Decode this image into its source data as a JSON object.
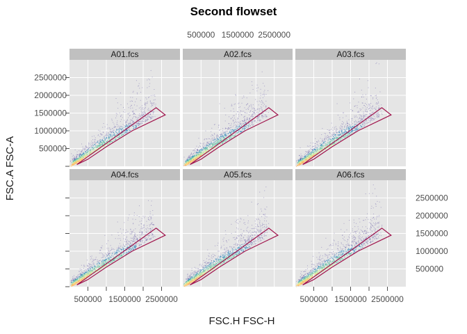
{
  "chart_data": {
    "type": "scatter",
    "title": "Second flowset",
    "xlabel": "FSC.H FSC-H",
    "ylabel": "FSC.A FSC-A",
    "xlim": [
      0,
      3000000
    ],
    "ylim": [
      0,
      3000000
    ],
    "x_ticks": [
      500000,
      1000000,
      1500000,
      2000000,
      2500000
    ],
    "y_ticks": [
      500000,
      1000000,
      1500000,
      2000000,
      2500000
    ],
    "x_tick_labels": [
      "500000",
      "1500000",
      "2500000"
    ],
    "y_tick_labels": [
      "500000",
      "1000000",
      "1500000",
      "2000000",
      "2500000"
    ],
    "grid": true,
    "layout": "3 columns x 2 rows",
    "panels": [
      {
        "name": "A01.fcs"
      },
      {
        "name": "A02.fcs"
      },
      {
        "name": "A03.fcs"
      },
      {
        "name": "A04.fcs"
      },
      {
        "name": "A05.fcs"
      },
      {
        "name": "A06.fcs"
      }
    ],
    "gate_polygon": [
      [
        200000,
        50000
      ],
      [
        2350000,
        1650000
      ],
      [
        2600000,
        1450000
      ],
      [
        1700000,
        1000000
      ],
      [
        1000000,
        550000
      ],
      [
        500000,
        200000
      ],
      [
        200000,
        50000
      ]
    ],
    "density_colors": [
      "#5e4fa2",
      "#3288bd",
      "#66c2a5",
      "#abdda4",
      "#e6f598",
      "#fee08b",
      "#fdae61",
      "#f46d43"
    ],
    "colors": {
      "panel_background": "#e5e5e5",
      "grid": "#ffffff",
      "strip": "#c0c0c0",
      "gate": "#a0144c"
    }
  }
}
